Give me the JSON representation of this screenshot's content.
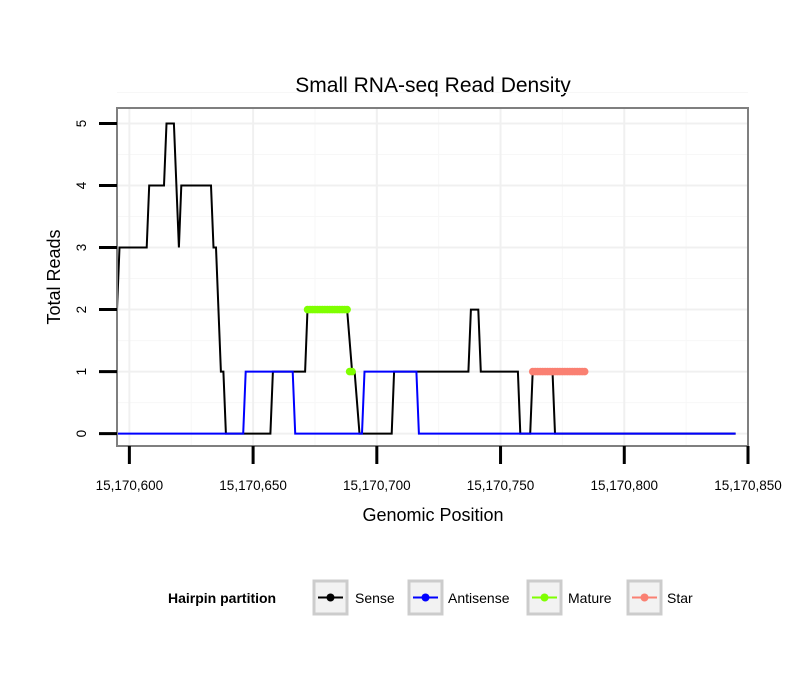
{
  "chart_data": {
    "type": "line",
    "title": "Small RNA-seq Read Density",
    "xlabel": "Genomic Position",
    "ylabel": "Total Reads",
    "xlim": [
      15170595,
      15170850
    ],
    "ylim": [
      -0.2,
      5.25
    ],
    "x_ticks": [
      15170600,
      15170650,
      15170700,
      15170750,
      15170800,
      15170850
    ],
    "x_tick_labels": [
      "15,170,600",
      "15,170,650",
      "15,170,700",
      "15,170,750",
      "15,170,800",
      "15,170,850"
    ],
    "y_ticks": [
      0,
      1,
      2,
      3,
      4,
      5
    ],
    "y_tick_labels": [
      "0",
      "1",
      "2",
      "3",
      "4",
      "5"
    ],
    "grid": true,
    "legend": {
      "title": "Hairpin partition",
      "position": "bottom",
      "entries": [
        {
          "name": "Sense",
          "color": "#000000"
        },
        {
          "name": "Antisense",
          "color": "#0000ff"
        },
        {
          "name": "Mature",
          "color": "#7fff00"
        },
        {
          "name": "Star",
          "color": "#fa8072"
        }
      ]
    },
    "series": [
      {
        "name": "Sense",
        "color": "#000000",
        "style": "line",
        "x": [
          15170595,
          15170596,
          15170602,
          15170607,
          15170608,
          15170614,
          15170615,
          15170618,
          15170619,
          15170620,
          15170621,
          15170633,
          15170634,
          15170635,
          15170637,
          15170638,
          15170639,
          15170640,
          15170657,
          15170658,
          15170661,
          15170662,
          15170671,
          15170672,
          15170674,
          15170688,
          15170690,
          15170691,
          15170693,
          15170694,
          15170706,
          15170707,
          15170716,
          15170717,
          15170718,
          15170719,
          15170737,
          15170738,
          15170741,
          15170742,
          15170757,
          15170758,
          15170762,
          15170763,
          15170771,
          15170772,
          15170845
        ],
        "y": [
          2,
          3,
          3,
          3,
          4,
          4,
          5,
          5,
          4,
          3,
          4,
          4,
          3,
          3,
          1,
          1,
          0,
          0,
          0,
          1,
          1,
          1,
          1,
          2,
          2,
          2,
          1,
          1,
          0,
          0,
          0,
          1,
          1,
          1,
          1,
          1,
          1,
          2,
          2,
          1,
          1,
          0,
          0,
          1,
          1,
          0,
          0
        ]
      },
      {
        "name": "Antisense",
        "color": "#0000ff",
        "style": "line",
        "x": [
          15170595,
          15170646,
          15170647,
          15170666,
          15170667,
          15170694,
          15170695,
          15170716,
          15170717,
          15170845
        ],
        "y": [
          0,
          0,
          1,
          1,
          0,
          0,
          1,
          1,
          0,
          0
        ]
      },
      {
        "name": "Mature",
        "color": "#7fff00",
        "style": "line-points",
        "segments": [
          {
            "x": [
              15170672,
              15170673,
              15170674,
              15170675,
              15170676,
              15170677,
              15170678,
              15170679,
              15170680,
              15170681,
              15170682,
              15170683,
              15170684,
              15170685,
              15170686,
              15170687,
              15170688
            ],
            "y": [
              2,
              2,
              2,
              2,
              2,
              2,
              2,
              2,
              2,
              2,
              2,
              2,
              2,
              2,
              2,
              2,
              2
            ]
          },
          {
            "x": [
              15170689,
              15170690
            ],
            "y": [
              1,
              1
            ]
          }
        ]
      },
      {
        "name": "Star",
        "color": "#fa8072",
        "style": "line-points",
        "segments": [
          {
            "x": [
              15170763,
              15170764,
              15170765,
              15170766,
              15170767,
              15170768,
              15170769,
              15170770,
              15170771,
              15170772,
              15170773,
              15170774,
              15170775,
              15170776,
              15170777,
              15170778,
              15170779,
              15170780,
              15170781,
              15170782,
              15170783,
              15170784
            ],
            "y": [
              1,
              1,
              1,
              1,
              1,
              1,
              1,
              1,
              1,
              1,
              1,
              1,
              1,
              1,
              1,
              1,
              1,
              1,
              1,
              1,
              1,
              1
            ]
          }
        ]
      }
    ]
  }
}
